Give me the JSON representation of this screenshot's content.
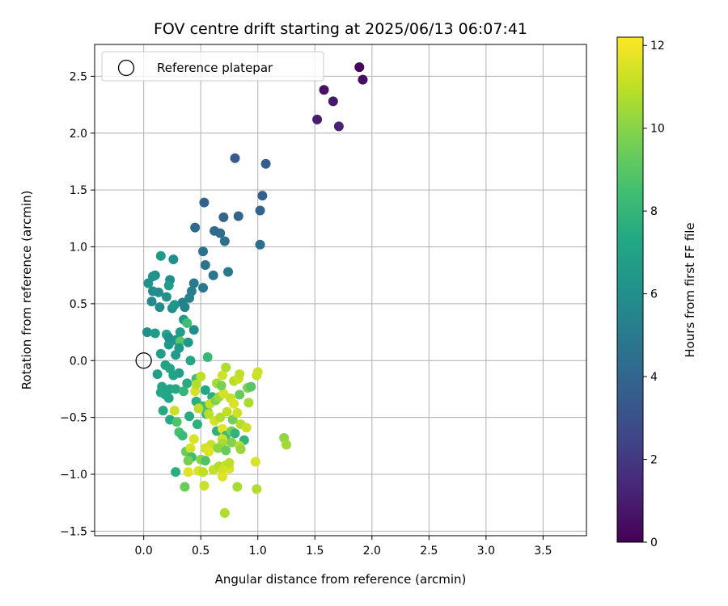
{
  "chart_data": {
    "type": "scatter",
    "title": "FOV centre drift starting at 2025/06/13 06:07:41",
    "xlabel": "Angular distance from reference (arcmin)",
    "ylabel": "Rotation from reference (arcmin)",
    "xlim": [
      -0.43,
      3.88
    ],
    "ylim": [
      -1.54,
      2.78
    ],
    "xticks": [
      0.0,
      0.5,
      1.0,
      1.5,
      2.0,
      2.5,
      3.0,
      3.5
    ],
    "xtick_labels": [
      "0.0",
      "0.5",
      "1.0",
      "1.5",
      "2.0",
      "2.5",
      "3.0",
      "3.5"
    ],
    "yticks": [
      -1.5,
      -1.0,
      -0.5,
      0.0,
      0.5,
      1.0,
      1.5,
      2.0,
      2.5
    ],
    "ytick_labels": [
      "−1.5",
      "−1.0",
      "−0.5",
      "0.0",
      "0.5",
      "1.0",
      "1.5",
      "2.0",
      "2.5"
    ],
    "grid": true,
    "legend": {
      "placement": "top-left",
      "entries": [
        "Reference platepar"
      ]
    },
    "reference_point": {
      "x": 0.0,
      "y": 0.0
    },
    "colorbar": {
      "label": "Hours from first FF file",
      "range": [
        0,
        12.2
      ],
      "ticks": [
        0,
        2,
        4,
        6,
        8,
        10,
        12
      ],
      "tick_labels": [
        "0",
        "2",
        "4",
        "6",
        "8",
        "10",
        "12"
      ],
      "colormap": "viridis"
    },
    "points": [
      {
        "x": 1.89,
        "y": 2.58,
        "h": 0.2
      },
      {
        "x": 1.92,
        "y": 2.47,
        "h": 0.4
      },
      {
        "x": 1.58,
        "y": 2.38,
        "h": 0.6
      },
      {
        "x": 1.66,
        "y": 2.28,
        "h": 0.8
      },
      {
        "x": 1.52,
        "y": 2.12,
        "h": 1.0
      },
      {
        "x": 1.71,
        "y": 2.06,
        "h": 1.2
      },
      {
        "x": 0.8,
        "y": 1.78,
        "h": 3.5
      },
      {
        "x": 1.07,
        "y": 1.73,
        "h": 3.6
      },
      {
        "x": 1.04,
        "y": 1.45,
        "h": 3.7
      },
      {
        "x": 0.53,
        "y": 1.39,
        "h": 3.8
      },
      {
        "x": 1.02,
        "y": 1.32,
        "h": 3.9
      },
      {
        "x": 0.7,
        "y": 1.26,
        "h": 4.0
      },
      {
        "x": 0.83,
        "y": 1.27,
        "h": 4.0
      },
      {
        "x": 0.45,
        "y": 1.17,
        "h": 4.1
      },
      {
        "x": 0.62,
        "y": 1.14,
        "h": 4.2
      },
      {
        "x": 0.67,
        "y": 1.12,
        "h": 4.3
      },
      {
        "x": 0.71,
        "y": 1.05,
        "h": 4.4
      },
      {
        "x": 1.02,
        "y": 1.02,
        "h": 4.5
      },
      {
        "x": 0.52,
        "y": 0.96,
        "h": 4.6
      },
      {
        "x": 0.54,
        "y": 0.84,
        "h": 4.7
      },
      {
        "x": 0.74,
        "y": 0.78,
        "h": 4.9
      },
      {
        "x": 0.61,
        "y": 0.75,
        "h": 4.8
      },
      {
        "x": 0.44,
        "y": 0.68,
        "h": 5.0
      },
      {
        "x": 0.52,
        "y": 0.64,
        "h": 4.9
      },
      {
        "x": 0.42,
        "y": 0.61,
        "h": 5.1
      },
      {
        "x": 0.4,
        "y": 0.55,
        "h": 5.2
      },
      {
        "x": 0.34,
        "y": 0.51,
        "h": 5.3
      },
      {
        "x": 0.36,
        "y": 0.47,
        "h": 5.3
      },
      {
        "x": 0.15,
        "y": 0.92,
        "h": 6.5
      },
      {
        "x": 0.26,
        "y": 0.89,
        "h": 6.0
      },
      {
        "x": 0.1,
        "y": 0.75,
        "h": 5.8
      },
      {
        "x": 0.08,
        "y": 0.74,
        "h": 6.2
      },
      {
        "x": 0.23,
        "y": 0.71,
        "h": 5.9
      },
      {
        "x": 0.04,
        "y": 0.68,
        "h": 6.2
      },
      {
        "x": 0.22,
        "y": 0.66,
        "h": 6.8
      },
      {
        "x": 0.08,
        "y": 0.61,
        "h": 6.0
      },
      {
        "x": 0.13,
        "y": 0.6,
        "h": 5.9
      },
      {
        "x": 0.2,
        "y": 0.56,
        "h": 6.1
      },
      {
        "x": 0.07,
        "y": 0.52,
        "h": 5.7
      },
      {
        "x": 0.14,
        "y": 0.47,
        "h": 5.8
      },
      {
        "x": 0.25,
        "y": 0.46,
        "h": 6.0
      },
      {
        "x": 0.27,
        "y": 0.49,
        "h": 6.4
      },
      {
        "x": 0.35,
        "y": 0.36,
        "h": 6.6
      },
      {
        "x": 0.38,
        "y": 0.33,
        "h": 8.4
      },
      {
        "x": 0.44,
        "y": 0.27,
        "h": 5.9
      },
      {
        "x": 0.03,
        "y": 0.25,
        "h": 6.0
      },
      {
        "x": 0.1,
        "y": 0.24,
        "h": 6.7
      },
      {
        "x": 0.2,
        "y": 0.23,
        "h": 7.0
      },
      {
        "x": 0.32,
        "y": 0.25,
        "h": 6.7
      },
      {
        "x": 0.22,
        "y": 0.2,
        "h": 6.0
      },
      {
        "x": 0.28,
        "y": 0.18,
        "h": 6.3
      },
      {
        "x": 0.32,
        "y": 0.17,
        "h": 9.0
      },
      {
        "x": 0.39,
        "y": 0.16,
        "h": 6.4
      },
      {
        "x": 0.22,
        "y": 0.14,
        "h": 6.5
      },
      {
        "x": 0.31,
        "y": 0.11,
        "h": 6.5
      },
      {
        "x": 0.15,
        "y": 0.06,
        "h": 6.8
      },
      {
        "x": 0.28,
        "y": 0.05,
        "h": 6.6
      },
      {
        "x": 0.41,
        "y": 0.0,
        "h": 7.2
      },
      {
        "x": 0.56,
        "y": 0.03,
        "h": 8.1
      },
      {
        "x": 0.19,
        "y": -0.04,
        "h": 7.0
      },
      {
        "x": 0.23,
        "y": -0.07,
        "h": 7.2
      },
      {
        "x": 0.12,
        "y": -0.12,
        "h": 6.8
      },
      {
        "x": 0.31,
        "y": -0.11,
        "h": 6.8
      },
      {
        "x": 0.26,
        "y": -0.13,
        "h": 7.0
      },
      {
        "x": 0.16,
        "y": -0.23,
        "h": 7.0
      },
      {
        "x": 0.23,
        "y": -0.25,
        "h": 7.1
      },
      {
        "x": 0.19,
        "y": -0.3,
        "h": 7.2
      },
      {
        "x": 0.15,
        "y": -0.28,
        "h": 7.3
      },
      {
        "x": 0.28,
        "y": -0.25,
        "h": 7.4
      },
      {
        "x": 0.22,
        "y": -0.33,
        "h": 7.2
      },
      {
        "x": 0.38,
        "y": -0.2,
        "h": 7.5
      },
      {
        "x": 0.46,
        "y": -0.16,
        "h": 8.5
      },
      {
        "x": 0.35,
        "y": -0.27,
        "h": 8.0
      },
      {
        "x": 0.54,
        "y": -0.26,
        "h": 7.3
      },
      {
        "x": 0.45,
        "y": -0.27,
        "h": 11.4
      },
      {
        "x": 0.6,
        "y": -0.32,
        "h": 7.6
      },
      {
        "x": 0.46,
        "y": -0.36,
        "h": 7.6
      },
      {
        "x": 0.52,
        "y": -0.4,
        "h": 8.5
      },
      {
        "x": 0.48,
        "y": -0.42,
        "h": 11.0
      },
      {
        "x": 0.55,
        "y": -0.47,
        "h": 7.7
      },
      {
        "x": 0.56,
        "y": -0.45,
        "h": 8.7
      },
      {
        "x": 0.27,
        "y": -0.44,
        "h": 11.2
      },
      {
        "x": 0.17,
        "y": -0.44,
        "h": 7.4
      },
      {
        "x": 0.23,
        "y": -0.52,
        "h": 7.4
      },
      {
        "x": 0.29,
        "y": -0.54,
        "h": 8.8
      },
      {
        "x": 0.4,
        "y": -0.49,
        "h": 7.5
      },
      {
        "x": 0.47,
        "y": -0.56,
        "h": 7.7
      },
      {
        "x": 0.31,
        "y": -0.63,
        "h": 8.6
      },
      {
        "x": 0.34,
        "y": -0.66,
        "h": 8.2
      },
      {
        "x": 0.37,
        "y": -0.8,
        "h": 9.4
      },
      {
        "x": 0.41,
        "y": -0.77,
        "h": 11.4
      },
      {
        "x": 0.44,
        "y": -0.69,
        "h": 11.5
      },
      {
        "x": 0.42,
        "y": -0.85,
        "h": 8.4
      },
      {
        "x": 0.39,
        "y": -0.88,
        "h": 9.7
      },
      {
        "x": 0.5,
        "y": -0.87,
        "h": 10.0
      },
      {
        "x": 0.54,
        "y": -0.88,
        "h": 8.8
      },
      {
        "x": 0.48,
        "y": -0.97,
        "h": 11.5
      },
      {
        "x": 0.52,
        "y": -0.98,
        "h": 11.0
      },
      {
        "x": 0.39,
        "y": -0.98,
        "h": 11.6
      },
      {
        "x": 0.28,
        "y": -0.98,
        "h": 7.6
      },
      {
        "x": 0.36,
        "y": -1.11,
        "h": 9.4
      },
      {
        "x": 0.53,
        "y": -1.1,
        "h": 11.2
      },
      {
        "x": 0.46,
        "y": -0.21,
        "h": 10.8
      },
      {
        "x": 0.5,
        "y": -0.14,
        "h": 11.0
      },
      {
        "x": 0.64,
        "y": -0.2,
        "h": 10.6
      },
      {
        "x": 0.58,
        "y": -0.38,
        "h": 11.1
      },
      {
        "x": 0.63,
        "y": -0.35,
        "h": 9.8
      },
      {
        "x": 0.66,
        "y": -0.32,
        "h": 10.4
      },
      {
        "x": 0.7,
        "y": -0.29,
        "h": 11.4
      },
      {
        "x": 0.68,
        "y": -0.22,
        "h": 9.7
      },
      {
        "x": 0.72,
        "y": -0.06,
        "h": 10.7
      },
      {
        "x": 0.69,
        "y": -0.13,
        "h": 11.3
      },
      {
        "x": 0.79,
        "y": -0.18,
        "h": 10.9
      },
      {
        "x": 0.83,
        "y": -0.16,
        "h": 11.2
      },
      {
        "x": 0.84,
        "y": -0.12,
        "h": 11.0
      },
      {
        "x": 0.76,
        "y": -0.33,
        "h": 11.2
      },
      {
        "x": 0.79,
        "y": -0.38,
        "h": 11.5
      },
      {
        "x": 0.84,
        "y": -0.3,
        "h": 9.3
      },
      {
        "x": 0.91,
        "y": -0.24,
        "h": 9.8
      },
      {
        "x": 0.94,
        "y": -0.23,
        "h": 9.0
      },
      {
        "x": 0.92,
        "y": -0.37,
        "h": 10.6
      },
      {
        "x": 0.99,
        "y": -0.13,
        "h": 11.2
      },
      {
        "x": 1.0,
        "y": -0.1,
        "h": 11.3
      },
      {
        "x": 0.57,
        "y": -0.47,
        "h": 10.9
      },
      {
        "x": 0.62,
        "y": -0.53,
        "h": 11.4
      },
      {
        "x": 0.67,
        "y": -0.5,
        "h": 10.8
      },
      {
        "x": 0.73,
        "y": -0.45,
        "h": 11.0
      },
      {
        "x": 0.78,
        "y": -0.52,
        "h": 9.6
      },
      {
        "x": 0.82,
        "y": -0.46,
        "h": 11.3
      },
      {
        "x": 0.85,
        "y": -0.56,
        "h": 10.8
      },
      {
        "x": 0.9,
        "y": -0.59,
        "h": 11.2
      },
      {
        "x": 0.64,
        "y": -0.62,
        "h": 7.8
      },
      {
        "x": 0.69,
        "y": -0.6,
        "h": 11.7
      },
      {
        "x": 0.72,
        "y": -0.66,
        "h": 8.4
      },
      {
        "x": 0.77,
        "y": -0.62,
        "h": 9.6
      },
      {
        "x": 0.8,
        "y": -0.64,
        "h": 7.9
      },
      {
        "x": 0.88,
        "y": -0.7,
        "h": 7.9
      },
      {
        "x": 0.69,
        "y": -0.69,
        "h": 11.3
      },
      {
        "x": 0.69,
        "y": -0.73,
        "h": 10.6
      },
      {
        "x": 0.59,
        "y": -0.74,
        "h": 11.2
      },
      {
        "x": 0.54,
        "y": -0.77,
        "h": 11.4
      },
      {
        "x": 0.57,
        "y": -0.8,
        "h": 11.6
      },
      {
        "x": 0.65,
        "y": -0.77,
        "h": 10.1
      },
      {
        "x": 0.72,
        "y": -0.79,
        "h": 9.3
      },
      {
        "x": 0.77,
        "y": -0.72,
        "h": 9.9
      },
      {
        "x": 0.84,
        "y": -0.75,
        "h": 10.9
      },
      {
        "x": 0.85,
        "y": -0.78,
        "h": 10.3
      },
      {
        "x": 1.23,
        "y": -0.68,
        "h": 10.2
      },
      {
        "x": 1.25,
        "y": -0.74,
        "h": 10.5
      },
      {
        "x": 0.98,
        "y": -0.89,
        "h": 11.5
      },
      {
        "x": 0.61,
        "y": -0.96,
        "h": 11.1
      },
      {
        "x": 0.66,
        "y": -0.93,
        "h": 10.8
      },
      {
        "x": 0.69,
        "y": -0.97,
        "h": 11.4
      },
      {
        "x": 0.72,
        "y": -0.92,
        "h": 11.2
      },
      {
        "x": 0.75,
        "y": -0.95,
        "h": 11.5
      },
      {
        "x": 0.75,
        "y": -0.9,
        "h": 11.0
      },
      {
        "x": 0.69,
        "y": -1.02,
        "h": 11.6
      },
      {
        "x": 0.82,
        "y": -1.11,
        "h": 10.6
      },
      {
        "x": 0.99,
        "y": -1.13,
        "h": 10.8
      },
      {
        "x": 0.71,
        "y": -1.34,
        "h": 10.7
      }
    ]
  }
}
